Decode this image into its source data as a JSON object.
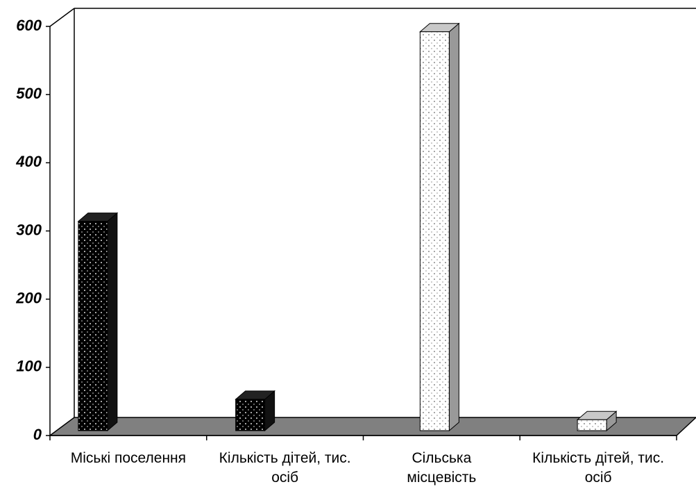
{
  "chart_data": {
    "type": "bar3d",
    "categories": [
      "Міські поселення",
      "Кількість дітей, тис. осіб",
      "Сільська місцевість",
      "Кількість дітей, тис. осіб"
    ],
    "values": [
      307,
      46,
      585,
      16
    ],
    "colors": [
      "#000000",
      "#000000",
      "#ffffff",
      "#ffffff"
    ],
    "ylim": [
      0,
      600
    ],
    "yticks": [
      0,
      100,
      200,
      300,
      400,
      500,
      600
    ],
    "grid": false
  }
}
